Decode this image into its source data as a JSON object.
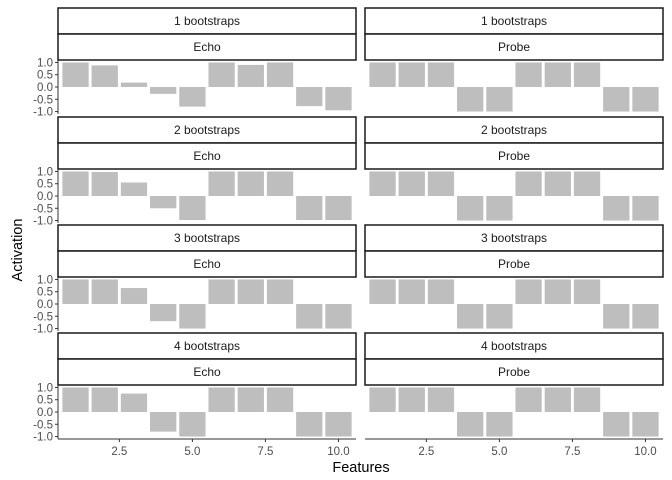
{
  "chart_data": {
    "type": "bar",
    "xlabel": "Features",
    "ylabel": "Activation",
    "x": [
      1,
      2,
      3,
      4,
      5,
      6,
      7,
      8,
      9,
      10
    ],
    "xticks": [
      2.5,
      5.0,
      7.5,
      10.0
    ],
    "xtick_labels": [
      "2.5",
      "5.0",
      "7.5",
      "10.0"
    ],
    "xlim": [
      0.4,
      10.6
    ],
    "yticks": [
      1.0,
      0.5,
      0.0,
      -0.5,
      -1.0
    ],
    "ytick_labels": [
      "1.0",
      "0.5",
      "0.0",
      "-0.5",
      "-1.0"
    ],
    "ylim": [
      -1.1,
      1.1
    ],
    "grid": false,
    "bar_color": "#bebebe",
    "rows": [
      "1 bootstraps",
      "2 bootstraps",
      "3 bootstraps",
      "4 bootstraps"
    ],
    "cols": [
      "Echo",
      "Probe"
    ],
    "panels": [
      {
        "row": "1 bootstraps",
        "col": "Echo",
        "values": [
          1.0,
          0.88,
          0.18,
          -0.28,
          -0.8,
          1.0,
          0.9,
          1.0,
          -0.78,
          -0.95
        ]
      },
      {
        "row": "1 bootstraps",
        "col": "Probe",
        "values": [
          1,
          1,
          1,
          -1,
          -1,
          1,
          1,
          1,
          -1,
          -1
        ]
      },
      {
        "row": "2 bootstraps",
        "col": "Echo",
        "values": [
          1.0,
          0.98,
          0.55,
          -0.5,
          -0.98,
          1.0,
          1.0,
          1.0,
          -0.98,
          -0.98
        ]
      },
      {
        "row": "2 bootstraps",
        "col": "Probe",
        "values": [
          1,
          1,
          1,
          -1,
          -1,
          1,
          1,
          1,
          -1,
          -1
        ]
      },
      {
        "row": "3 bootstraps",
        "col": "Echo",
        "values": [
          1.0,
          1.0,
          0.65,
          -0.7,
          -1.0,
          1.0,
          1.0,
          1.0,
          -1.0,
          -1.0
        ]
      },
      {
        "row": "3 bootstraps",
        "col": "Probe",
        "values": [
          1,
          1,
          1,
          -1,
          -1,
          1,
          1,
          1,
          -1,
          -1
        ]
      },
      {
        "row": "4 bootstraps",
        "col": "Echo",
        "values": [
          1.0,
          1.0,
          0.75,
          -0.8,
          -1.0,
          1.0,
          1.0,
          1.0,
          -1.0,
          -1.0
        ]
      },
      {
        "row": "4 bootstraps",
        "col": "Probe",
        "values": [
          1,
          1,
          1,
          -1,
          -1,
          1,
          1,
          1,
          -1,
          -1
        ]
      }
    ]
  }
}
